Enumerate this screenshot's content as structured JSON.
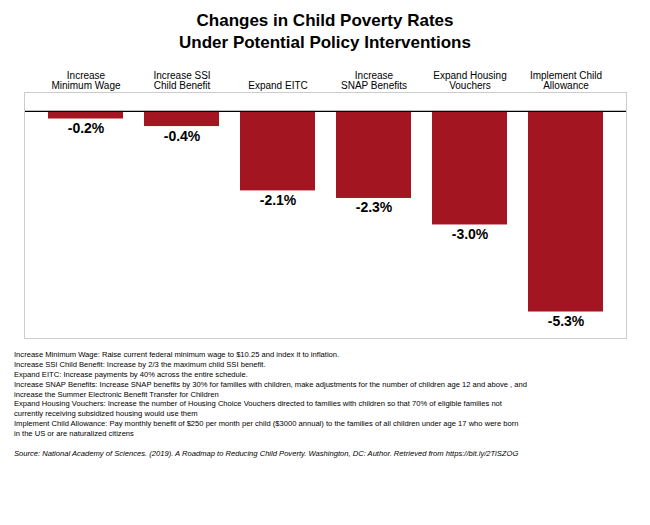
{
  "chart_data": {
    "type": "bar",
    "title": "Changes in Child Poverty Rates\nUnder Potential Policy Interventions",
    "categories": [
      "Increase\nMinimum Wage",
      "Increase SSI\nChild Benefit",
      "Expand EITC",
      "Increase\nSNAP Benefits",
      "Expand Housing\nVouchers",
      "Implement Child\nAllowance"
    ],
    "values": [
      -0.2,
      -0.4,
      -2.1,
      -2.3,
      -3.0,
      -5.3
    ],
    "value_labels": [
      "-0.2%",
      "-0.4%",
      "-2.1%",
      "-2.3%",
      "-3.0%",
      "-5.3%"
    ],
    "color": "#A31621",
    "ylim": [
      -6.0,
      0.5
    ],
    "data_labels": true,
    "tick_labels": "x",
    "grid": false,
    "annotations": [
      "Increase Minimum Wage: Raise current federal minimum wage to $10.25 and index it to inflation.",
      "Increase SSI Child Benefit: Increase by 2/3 the maximum child SSI benefit.",
      "Expand EITC: Increase payments by 40% across the entire schedule.",
      "Increase SNAP Benefits: Increase SNAP benefits by 30% for families with children, make adjustments for the number of children age 12 and above , and\nincrease the Summer Electronic Benefit Transfer for Children",
      "Expand Housing Vouchers: Increase the number of Housing Choice Vouchers directed to families with children so that 70% of eligible families not\ncurrently receiving subsidized housing would use them",
      "Implement Child Allowance: Pay monthly benefit of $250 per month per child ($3000 annual) to the families of all children under age 17 who were born\nin the US or are naturalized citizens",
      "Source: National Academy of Sciences. (2019). A Roadmap to Reducing Child Poverty. Washington, DC: Author. Retrieved from https://bit.ly/2TiSZOG"
    ]
  }
}
